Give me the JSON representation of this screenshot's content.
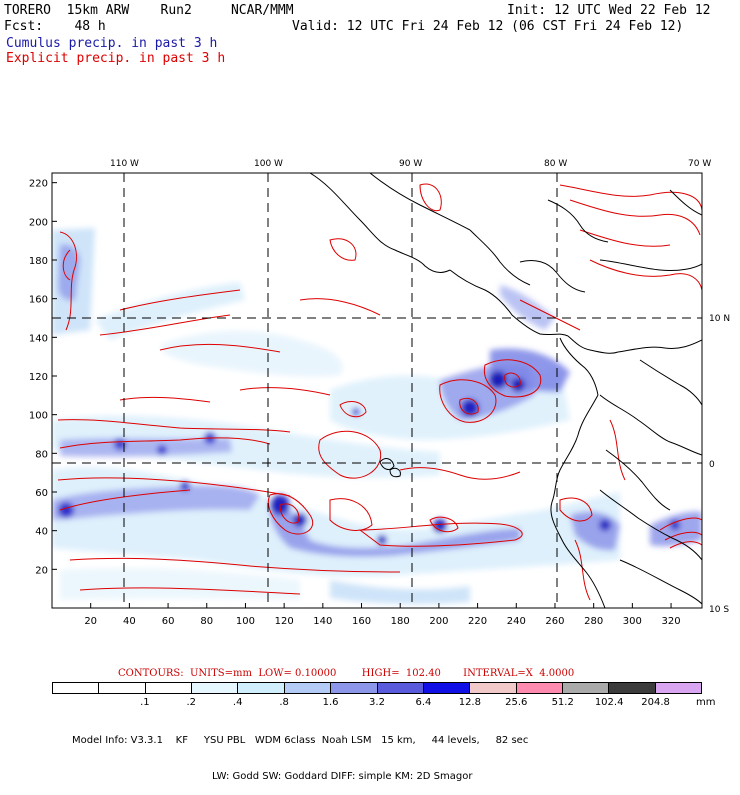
{
  "header": {
    "model": "TORERO  15km ARW    Run2     NCAR/MMM",
    "forecast": "Fcst:    48 h",
    "init": "Init: 12 UTC Wed 22 Feb 12",
    "valid": "Valid: 12 UTC Fri 24 Feb 12 (06 CST Fri 24 Feb 12)",
    "legend_cumulus": "Cumulus precip. in past 3 h",
    "legend_explicit": "Explicit precip. in past 3 h",
    "color_cumulus": "#1a1aa8",
    "color_explicit": "#dd0000"
  },
  "map": {
    "top_lon_labels": [
      "110 W",
      "100 W",
      "90 W",
      "80 W",
      "70 W"
    ],
    "right_lat_labels": [
      "10 N",
      "0",
      "10 S"
    ],
    "left_grid_labels": [
      "220",
      "200",
      "180",
      "160",
      "140",
      "120",
      "100",
      "80",
      "60",
      "40",
      "20"
    ],
    "bottom_grid_labels": [
      "20",
      "40",
      "60",
      "80",
      "100",
      "120",
      "140",
      "160",
      "180",
      "200",
      "220",
      "240",
      "260",
      "280",
      "300",
      "320"
    ],
    "coastline_color": "#000000",
    "graticule_style": "dashed"
  },
  "contours": {
    "text": "CONTOURS:  UNITS=mm  LOW= 0.10000        HIGH=  102.40       INTERVAL=X  4.0000"
  },
  "colorbar": {
    "colors": [
      "#ffffff",
      "#ffffff",
      "#ffffff",
      "#e6f7ff",
      "#d0eefb",
      "#b4ccf5",
      "#8d97ea",
      "#5a5add",
      "#1010e6",
      "#f2c9c9",
      "#ff8bb0",
      "#aaaaaa",
      "#3c3c3c",
      "#d9a6f2"
    ],
    "labels": [
      ".1",
      ".2",
      ".4",
      ".8",
      "1.6",
      "3.2",
      "6.4",
      "12.8",
      "25.6",
      "51.2",
      "102.4",
      "204.8"
    ],
    "unit": "mm"
  },
  "model_info": {
    "line1": "Model Info: V3.3.1    KF     YSU PBL   WDM 6class  Noah LSM   15 km,     44 levels,     82 sec",
    "line2": "LW: Godd SW: Goddard DIFF: simple KM: 2D Smagor"
  }
}
